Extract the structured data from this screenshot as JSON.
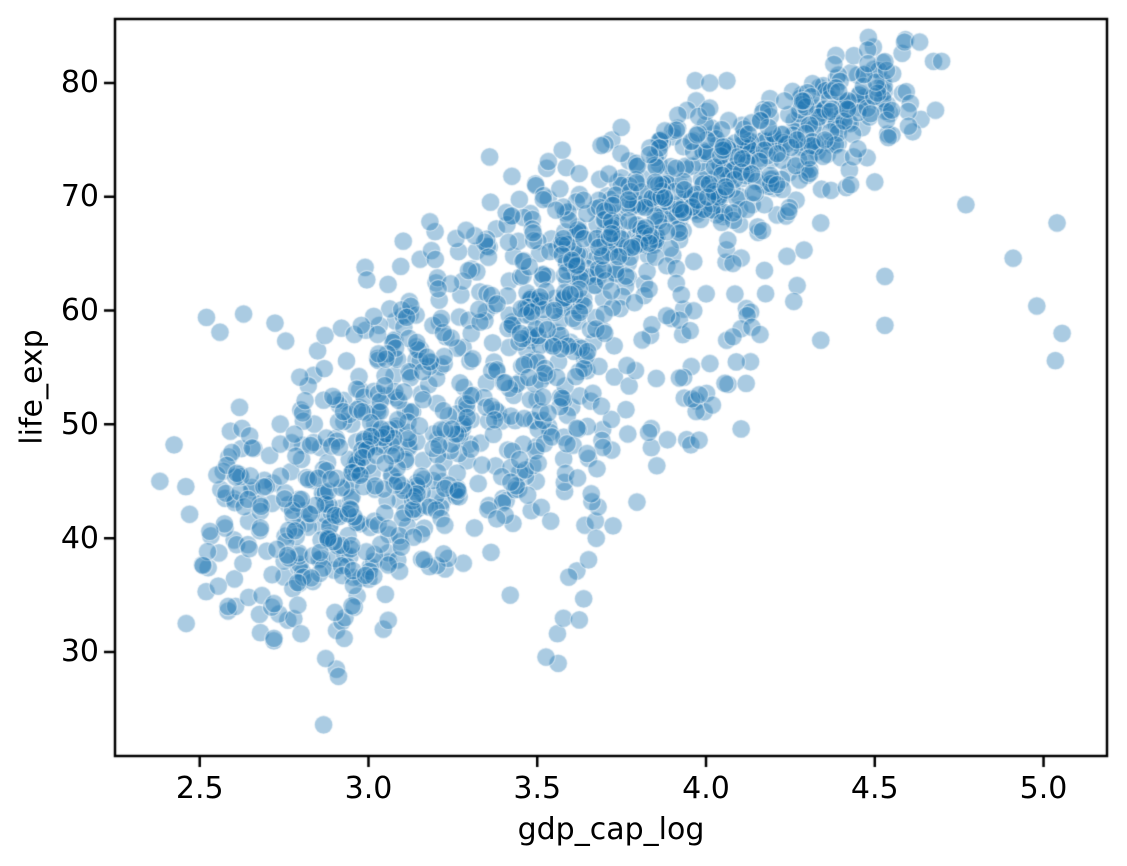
{
  "chart_data": {
    "type": "scatter",
    "title": "",
    "xlabel": "gdp_cap_log",
    "ylabel": "life_exp",
    "xlim": [
      2.249,
      5.188
    ],
    "ylim": [
      20.86,
      85.62
    ],
    "x_ticks": [
      2.5,
      3.0,
      3.5,
      4.0,
      4.5,
      5.0
    ],
    "x_tick_labels": [
      "2.5",
      "3.0",
      "3.5",
      "4.0",
      "4.5",
      "5.0"
    ],
    "y_ticks": [
      30,
      40,
      50,
      60,
      70,
      80
    ],
    "y_tick_labels": [
      "30",
      "40",
      "50",
      "60",
      "70",
      "80"
    ],
    "grid": false,
    "legend": null,
    "background": "#ffffff",
    "spine_color": "#000000",
    "text_color": "#000000",
    "marker": {
      "shape": "circle",
      "color": "#1f77b4",
      "alpha": 0.38,
      "radius_px": 9.2,
      "edge_color": "rgba(255,255,255,0.5)",
      "edge_width": 1.2
    },
    "n_points_approx": 1700,
    "points_per_track": 12,
    "tracks": [
      [
        3.97,
        68.4,
        4.56,
        81.2
      ],
      [
        3.79,
        66.8,
        4.55,
        79.8
      ],
      [
        3.96,
        68.0,
        4.53,
        79.4
      ],
      [
        4.04,
        68.8,
        4.56,
        80.7
      ],
      [
        3.99,
        70.8,
        4.55,
        78.3
      ],
      [
        3.81,
        66.6,
        4.52,
        79.3
      ],
      [
        3.85,
        67.4,
        4.49,
        80.7
      ],
      [
        3.86,
        67.5,
        4.51,
        79.4
      ],
      [
        3.54,
        65.9,
        4.44,
        79.5
      ],
      [
        3.91,
        72.5,
        4.56,
        81.8
      ],
      [
        3.71,
        66.9,
        4.61,
        78.9
      ],
      [
        3.69,
        65.9,
        4.45,
        80.5
      ],
      [
        3.53,
        63.0,
        4.5,
        82.6
      ],
      [
        4.0,
        72.1,
        4.57,
        79.8
      ],
      [
        4.02,
        69.4,
        4.4,
        80.2
      ],
      [
        4.0,
        72.7,
        4.69,
        80.2
      ],
      [
        3.48,
        59.8,
        4.31,
        78.1
      ],
      [
        3.59,
        64.9,
        4.45,
        80.9
      ],
      [
        3.93,
        71.9,
        4.53,
        80.9
      ],
      [
        4.17,
        69.6,
        4.57,
        81.7
      ],
      [
        4.0,
        69.2,
        4.52,
        79.4
      ],
      [
        4.14,
        68.4,
        4.63,
        78.2
      ],
      [
        3.88,
        68.9,
        4.54,
        80.6
      ],
      [
        3.63,
        69.1,
        4.47,
        80.0
      ],
      [
        3.76,
        62.5,
        4.1,
        75.3
      ],
      [
        3.34,
        50.9,
        3.96,
        72.4
      ],
      [
        3.59,
        54.7,
        4.12,
        78.6
      ],
      [
        3.38,
        50.6,
        3.85,
        72.9
      ],
      [
        3.46,
        57.2,
        3.99,
        78.8
      ],
      [
        3.49,
        59.4,
        3.94,
        78.3
      ],
      [
        3.53,
        50.8,
        4.06,
        76.2
      ],
      [
        3.55,
        64.3,
        4.06,
        78.5
      ],
      [
        4.13,
        55.1,
        4.05,
        73.7
      ],
      [
        2.6,
        44.0,
        3.69,
        73.0
      ],
      [
        2.83,
        37.4,
        3.39,
        64.7
      ],
      [
        2.87,
        37.5,
        3.54,
        70.6
      ],
      [
        3.08,
        45.3,
        4.03,
        78.6
      ],
      [
        3.3,
        50.9,
        4.08,
        74.2
      ],
      [
        3.28,
        47.8,
        3.88,
        70.6
      ],
      [
        3.66,
        45.9,
        4.33,
        72.8
      ],
      [
        3.15,
        41.9,
        3.75,
        71.3
      ],
      [
        3.43,
        55.6,
        3.72,
        74.1
      ],
      [
        3.37,
        42.7,
        4.08,
        74.0
      ],
      [
        3.26,
        37.6,
        4.35,
        75.6
      ],
      [
        3.1,
        47.8,
        3.5,
        71.7
      ],
      [
        2.88,
        50.8,
        3.87,
        70.6
      ],
      [
        3.61,
        61.3,
        4.19,
        75.6
      ],
      [
        3.72,
        64.0,
        4.26,
        73.3
      ],
      [
        3.85,
        67.5,
        4.34,
        74.5
      ],
      [
        3.38,
        59.6,
        4.03,
        73.0
      ],
      [
        3.29,
        43.6,
        3.96,
        71.8
      ],
      [
        3.49,
        61.1,
        4.03,
        72.5
      ],
      [
        3.56,
        43.9,
        3.87,
        71.4
      ],
      [
        3.56,
        48.4,
        3.83,
        75.0
      ],
      [
        3.14,
        45.9,
        3.79,
        72.2
      ],
      [
        3.41,
        58.5,
        3.86,
        72.6
      ],
      [
        3.48,
        59.1,
        4.27,
        69.8
      ],
      [
        3.39,
        55.2,
        3.97,
        75.5
      ],
      [
        3.29,
        62.6,
        3.61,
        71.8
      ],
      [
        3.47,
        45.3,
        3.76,
        71.9
      ],
      [
        3.76,
        66.1,
        4.03,
        76.4
      ],
      [
        2.89,
        42.2,
        3.49,
        66.8
      ],
      [
        3.04,
        50.1,
        3.19,
        67.3
      ],
      [
        3.04,
        57.6,
        3.59,
        72.4
      ],
      [
        3.6,
        45.3,
        3.65,
        59.5
      ],
      [
        3.19,
        43.2,
        3.66,
        72.5
      ],
      [
        3.23,
        42.9,
        3.61,
        71.2
      ],
      [
        3.15,
        44.6,
        3.86,
        73.9
      ],
      [
        3.39,
        43.1,
        3.8,
        72.3
      ],
      [
        2.78,
        40.4,
        3.39,
        74.2
      ],
      [
        2.84,
        43.4,
        3.42,
        65.5
      ],
      [
        2.53,
        36.3,
        2.98,
        62.1
      ],
      [
        2.74,
        36.2,
        3.03,
        63.8
      ],
      [
        2.84,
        37.5,
        3.13,
        64.1
      ],
      [
        2.56,
        39.4,
        3.23,
        59.7
      ],
      [
        2.89,
        28.8,
        2.99,
        43.8
      ],
      [
        3.26,
        37.6,
        3.08,
        60.9
      ],
      [
        3.45,
        40.4,
        3.57,
        65.6
      ],
      [
        3.31,
        41.9,
        3.56,
        70.2
      ],
      [
        3.39,
        42.0,
        3.71,
        70.3
      ],
      [
        3.51,
        42.3,
        3.45,
        72.9
      ],
      [
        3.03,
        38.0,
        3.16,
        56.7
      ],
      [
        2.73,
        32.0,
        3.09,
        52.3
      ],
      [
        2.53,
        39.0,
        2.63,
        49.6
      ],
      [
        3.07,
        38.5,
        3.31,
        50.4
      ],
      [
        3.02,
        35.5,
        2.86,
        44.7
      ],
      [
        3.08,
        38.1,
        3.23,
        50.7
      ],
      [
        2.89,
        39.1,
        2.44,
        46.5
      ],
      [
        3.37,
        42.1,
        3.59,
        55.3
      ],
      [
        2.56,
        34.1,
        2.84,
        52.9
      ],
      [
        2.99,
        43.5,
        3.06,
        60.0
      ],
      [
        2.71,
        33.6,
        2.94,
        56.0
      ],
      [
        2.93,
        42.3,
        3.15,
        54.1
      ],
      [
        3.17,
        36.7,
        3.01,
        59.4
      ],
      [
        2.55,
        36.3,
        2.88,
        48.3
      ],
      [
        2.65,
        33.7,
        3.02,
        54.5
      ],
      [
        2.67,
        31.3,
        2.92,
        42.1
      ],
      [
        2.89,
        37.4,
        2.75,
        56.9
      ],
      [
        3.03,
        36.3,
        3.31,
        46.9
      ],
      [
        2.74,
        40.0,
        2.87,
        46.2
      ],
      [
        3.16,
        37.3,
        3.22,
        63.1
      ],
      [
        2.95,
        30.3,
        2.91,
        42.6
      ],
      [
        3.04,
        33.0,
        2.98,
        48.2
      ],
      [
        3.67,
        45.0,
        3.91,
        62.0
      ],
      [
        3.91,
        62.0,
        3.98,
        49.3
      ],
      [
        3.19,
        38.6,
        3.35,
        58.6
      ],
      [
        2.87,
        41.2,
        3.06,
        52.5
      ],
      [
        2.87,
        40.0,
        3.06,
        51.5
      ],
      [
        3.06,
        42.0,
        3.1,
        46.0
      ],
      [
        2.61,
        48.5,
        2.67,
        43.5
      ],
      [
        3.55,
        30.0,
        3.67,
        42.7
      ],
      [
        3.66,
        37.0,
        4.12,
        56.7
      ],
      [
        2.93,
        47.6,
        4.08,
        50.7
      ],
      [
        2.56,
        34.5,
        4.09,
        51.6
      ],
      [
        3.99,
        50.9,
        4.47,
        75.6
      ],
      [
        3.36,
        60.4,
        4.68,
        80.0
      ],
      [
        3.49,
        61.0,
        4.6,
        82.2
      ],
      [
        3.08,
        58.5,
        4.45,
        78.4
      ]
    ],
    "jitter_x": [
      0.01,
      -0.022,
      0.031,
      -0.008,
      0.018,
      -0.035,
      0.004,
      0.027,
      -0.016,
      0.033,
      -0.027,
      0.007,
      -0.012,
      0.024,
      -0.031,
      0.015,
      0.002,
      -0.019,
      0.029,
      -0.005,
      0.021,
      -0.025,
      0.012,
      -0.033
    ],
    "jitter_y": [
      0.4,
      -1.1,
      1.6,
      -0.5,
      2.0,
      -1.6,
      0.8,
      -2.1,
      1.2,
      -0.3,
      1.9,
      -1.3,
      0.2,
      1.4,
      -1.8,
      0.9,
      -0.7,
      2.2,
      -1.0,
      0.5,
      -2.3,
      1.1,
      1.7,
      -1.5
    ],
    "extra_points": [
      [
        5.035,
        55.6
      ],
      [
        5.055,
        58.0
      ],
      [
        4.98,
        60.4
      ],
      [
        4.91,
        64.6
      ],
      [
        5.04,
        67.7
      ],
      [
        4.77,
        69.3
      ],
      [
        4.5,
        71.3
      ],
      [
        4.45,
        74.2
      ],
      [
        4.54,
        75.2
      ],
      [
        4.6,
        76.2
      ],
      [
        4.55,
        77.6
      ],
      [
        4.68,
        77.6
      ],
      [
        2.867,
        23.6
      ],
      [
        2.79,
        36.1
      ],
      [
        2.8,
        31.6
      ],
      [
        2.72,
        31.2
      ],
      [
        2.68,
        40.9
      ],
      [
        2.69,
        44.5
      ],
      [
        4.53,
        58.7
      ],
      [
        4.53,
        63.0
      ],
      [
        4.34,
        57.4
      ],
      [
        4.27,
        62.2
      ],
      [
        4.08,
        57.7
      ],
      [
        4.16,
        57.9
      ],
      [
        4.26,
        60.8
      ],
      [
        4.34,
        67.7
      ],
      [
        3.98,
        52.6
      ],
      [
        3.54,
        41.5
      ],
      [
        3.7,
        58.0
      ],
      [
        3.66,
        43.9
      ],
      [
        3.38,
        41.7
      ],
      [
        3.69,
        51.6
      ],
      [
        2.47,
        42.1
      ],
      [
        2.63,
        59.7
      ],
      [
        3.02,
        44.6
      ],
      [
        2.46,
        32.5
      ],
      [
        2.51,
        37.6
      ],
      [
        2.58,
        46.4
      ],
      [
        2.76,
        38.5
      ],
      [
        2.61,
        45.7
      ],
      [
        2.53,
        40.6
      ],
      [
        2.382,
        45.0
      ],
      [
        3.42,
        35.0
      ],
      [
        2.52,
        59.4
      ],
      [
        2.56,
        58.1
      ]
    ]
  }
}
